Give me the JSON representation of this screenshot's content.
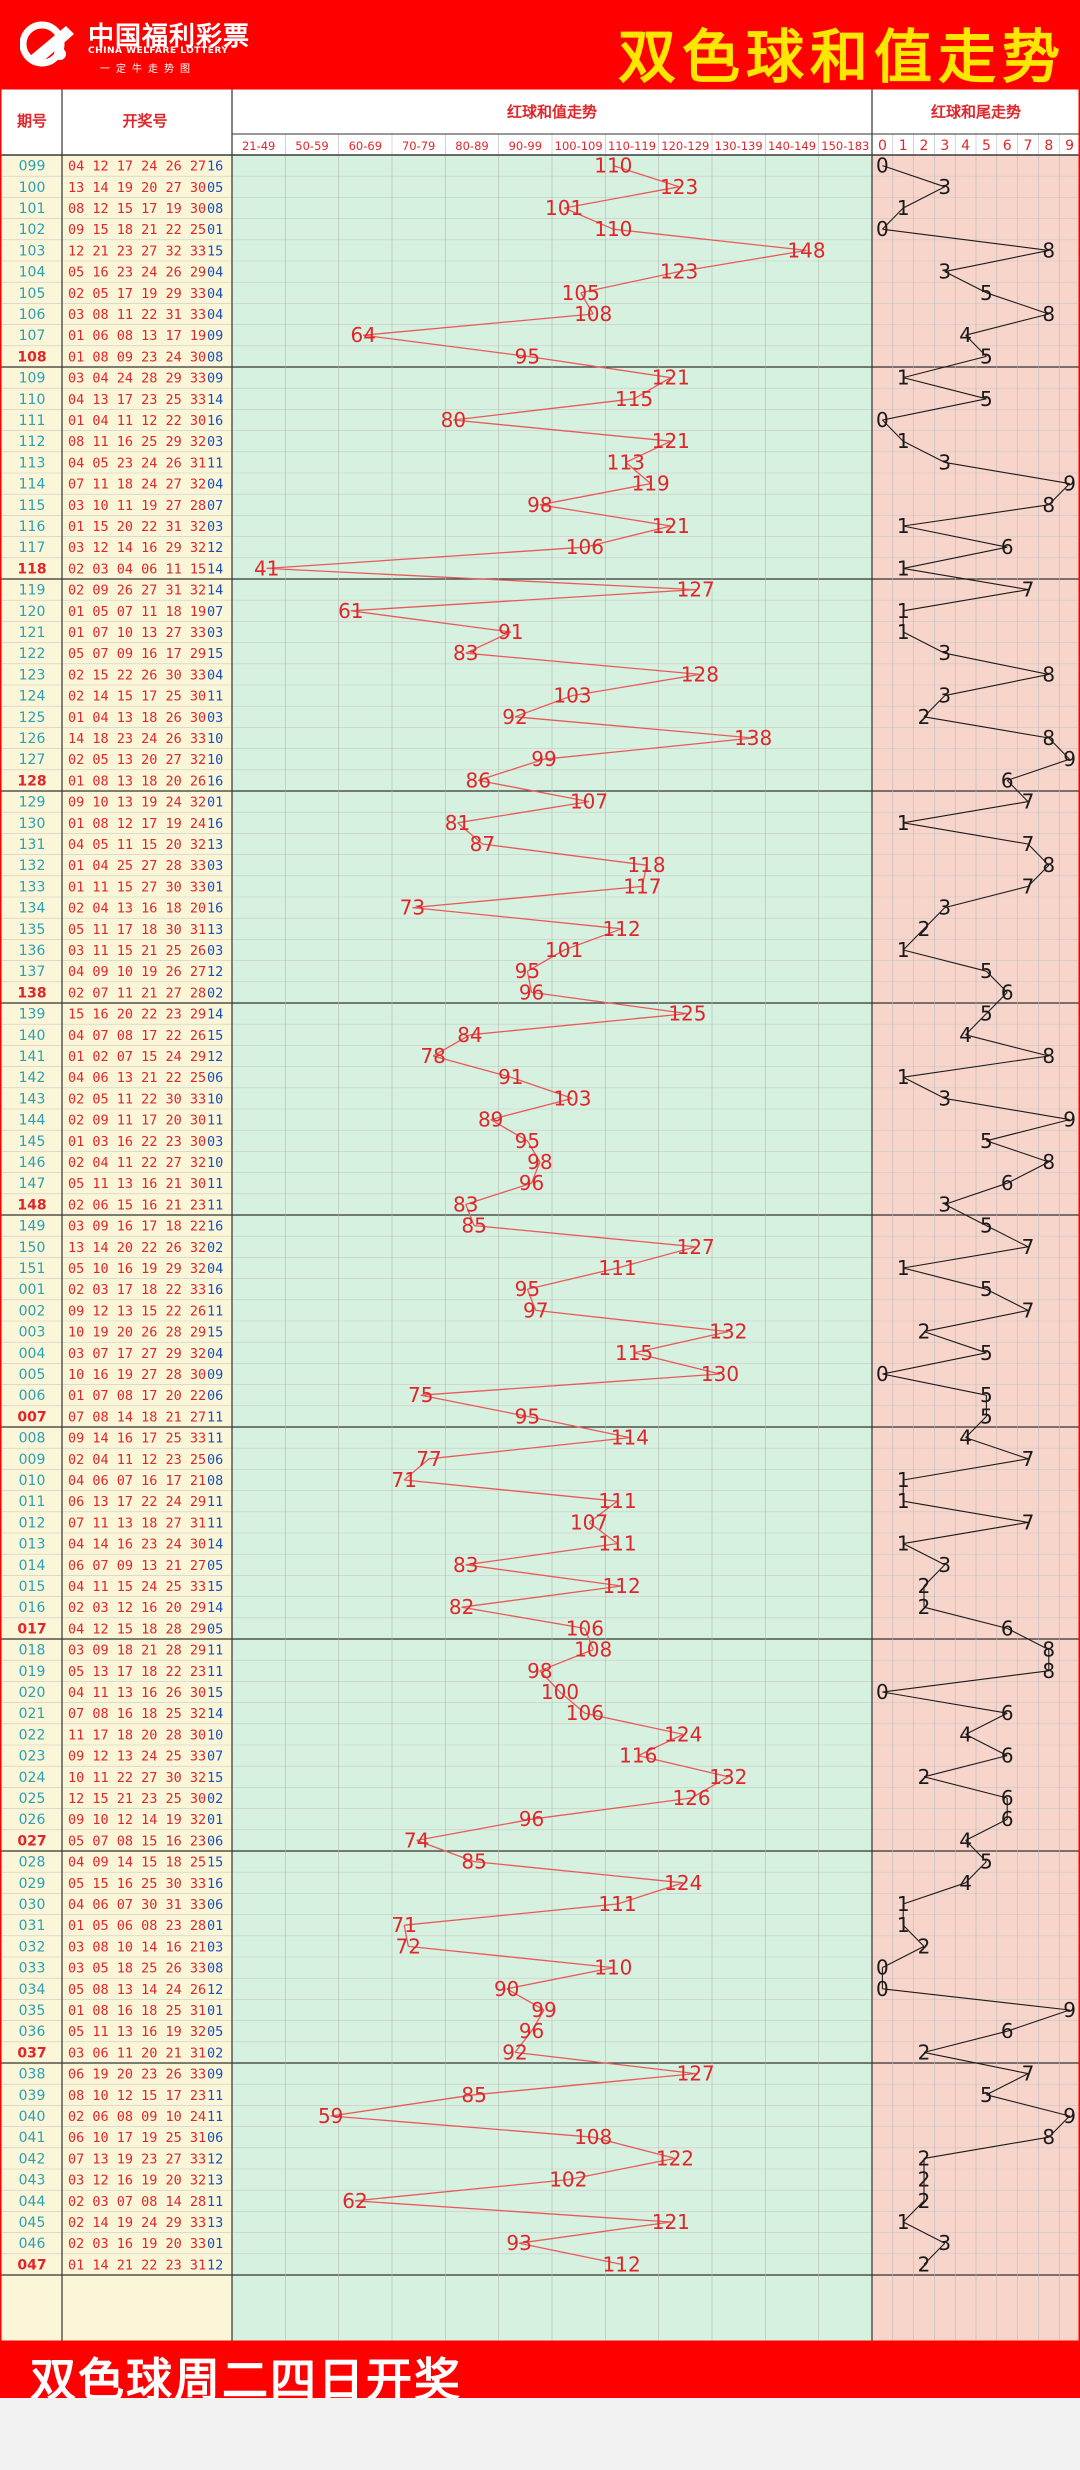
{
  "header": {
    "logo_cn": "中国福利彩票",
    "logo_en": "CHINA WELFARE LOTTERY",
    "logo_sub": "一定牛走势图",
    "title": "双色球和值走势"
  },
  "footer": {
    "text": "双色球周二四日开奖"
  },
  "columns": {
    "issue": "期号",
    "numbers": "开奖号",
    "sum_trend": "红球和值走势",
    "tail_trend": "红球和尾走势"
  },
  "colors": {
    "red": "#ff0000",
    "title_yellow": "#ffe600",
    "sum_bg": "#d6f1df",
    "tail_bg": "#f8d5cb",
    "left_bg": "#fbf6d8",
    "issue_blue": "#2a9fb5",
    "ball_red": "#e0262a",
    "ball_blue": "#1a4fb8",
    "line": "#e85a5a"
  },
  "chart_data": {
    "type": "line",
    "sum_ranges": [
      "21-49",
      "50-59",
      "60-69",
      "70-79",
      "80-89",
      "90-99",
      "100-109",
      "110-119",
      "120-129",
      "130-139",
      "140-149",
      "150-183"
    ],
    "tail_digits": [
      "0",
      "1",
      "2",
      "3",
      "4",
      "5",
      "6",
      "7",
      "8",
      "9"
    ],
    "draws": [
      {
        "issue": "099",
        "reds": "04 12 17 24 26 27",
        "blue": "16",
        "sum": 110,
        "tail": 0
      },
      {
        "issue": "100",
        "reds": "13 14 19 20 27 30",
        "blue": "05",
        "sum": 123,
        "tail": 3
      },
      {
        "issue": "101",
        "reds": "08 12 15 17 19 30",
        "blue": "08",
        "sum": 101,
        "tail": 1
      },
      {
        "issue": "102",
        "reds": "09 15 18 21 22 25",
        "blue": "01",
        "sum": 110,
        "tail": 0
      },
      {
        "issue": "103",
        "reds": "12 21 23 27 32 33",
        "blue": "15",
        "sum": 148,
        "tail": 8
      },
      {
        "issue": "104",
        "reds": "05 16 23 24 26 29",
        "blue": "04",
        "sum": 123,
        "tail": 3
      },
      {
        "issue": "105",
        "reds": "02 05 17 19 29 33",
        "blue": "04",
        "sum": 105,
        "tail": 5
      },
      {
        "issue": "106",
        "reds": "03 08 11 22 31 33",
        "blue": "04",
        "sum": 108,
        "tail": 8
      },
      {
        "issue": "107",
        "reds": "01 06 08 13 17 19",
        "blue": "09",
        "sum": 64,
        "tail": 4
      },
      {
        "issue": "108",
        "reds": "01 08 09 23 24 30",
        "blue": "08",
        "sum": 95,
        "tail": 5
      },
      {
        "issue": "109",
        "reds": "03 04 24 28 29 33",
        "blue": "09",
        "sum": 121,
        "tail": 1
      },
      {
        "issue": "110",
        "reds": "04 13 17 23 25 33",
        "blue": "14",
        "sum": 115,
        "tail": 5
      },
      {
        "issue": "111",
        "reds": "01 04 11 12 22 30",
        "blue": "16",
        "sum": 80,
        "tail": 0
      },
      {
        "issue": "112",
        "reds": "08 11 16 25 29 32",
        "blue": "03",
        "sum": 121,
        "tail": 1
      },
      {
        "issue": "113",
        "reds": "04 05 23 24 26 31",
        "blue": "11",
        "sum": 113,
        "tail": 3
      },
      {
        "issue": "114",
        "reds": "07 11 18 24 27 32",
        "blue": "04",
        "sum": 119,
        "tail": 9
      },
      {
        "issue": "115",
        "reds": "03 10 11 19 27 28",
        "blue": "07",
        "sum": 98,
        "tail": 8
      },
      {
        "issue": "116",
        "reds": "01 15 20 22 31 32",
        "blue": "03",
        "sum": 121,
        "tail": 1
      },
      {
        "issue": "117",
        "reds": "03 12 14 16 29 32",
        "blue": "12",
        "sum": 106,
        "tail": 6
      },
      {
        "issue": "118",
        "reds": "02 03 04 06 11 15",
        "blue": "14",
        "sum": 41,
        "tail": 1
      },
      {
        "issue": "119",
        "reds": "02 09 26 27 31 32",
        "blue": "14",
        "sum": 127,
        "tail": 7
      },
      {
        "issue": "120",
        "reds": "01 05 07 11 18 19",
        "blue": "07",
        "sum": 61,
        "tail": 1
      },
      {
        "issue": "121",
        "reds": "01 07 10 13 27 33",
        "blue": "03",
        "sum": 91,
        "tail": 1
      },
      {
        "issue": "122",
        "reds": "05 07 09 16 17 29",
        "blue": "15",
        "sum": 83,
        "tail": 3
      },
      {
        "issue": "123",
        "reds": "02 15 22 26 30 33",
        "blue": "04",
        "sum": 128,
        "tail": 8
      },
      {
        "issue": "124",
        "reds": "02 14 15 17 25 30",
        "blue": "11",
        "sum": 103,
        "tail": 3
      },
      {
        "issue": "125",
        "reds": "01 04 13 18 26 30",
        "blue": "03",
        "sum": 92,
        "tail": 2
      },
      {
        "issue": "126",
        "reds": "14 18 23 24 26 33",
        "blue": "10",
        "sum": 138,
        "tail": 8
      },
      {
        "issue": "127",
        "reds": "02 05 13 20 27 32",
        "blue": "10",
        "sum": 99,
        "tail": 9
      },
      {
        "issue": "128",
        "reds": "01 08 13 18 20 26",
        "blue": "16",
        "sum": 86,
        "tail": 6
      },
      {
        "issue": "129",
        "reds": "09 10 13 19 24 32",
        "blue": "01",
        "sum": 107,
        "tail": 7
      },
      {
        "issue": "130",
        "reds": "01 08 12 17 19 24",
        "blue": "16",
        "sum": 81,
        "tail": 1
      },
      {
        "issue": "131",
        "reds": "04 05 11 15 20 32",
        "blue": "13",
        "sum": 87,
        "tail": 7
      },
      {
        "issue": "132",
        "reds": "01 04 25 27 28 33",
        "blue": "03",
        "sum": 118,
        "tail": 8
      },
      {
        "issue": "133",
        "reds": "01 11 15 27 30 33",
        "blue": "01",
        "sum": 117,
        "tail": 7
      },
      {
        "issue": "134",
        "reds": "02 04 13 16 18 20",
        "blue": "16",
        "sum": 73,
        "tail": 3
      },
      {
        "issue": "135",
        "reds": "05 11 17 18 30 31",
        "blue": "13",
        "sum": 112,
        "tail": 2
      },
      {
        "issue": "136",
        "reds": "03 11 15 21 25 26",
        "blue": "03",
        "sum": 101,
        "tail": 1
      },
      {
        "issue": "137",
        "reds": "04 09 10 19 26 27",
        "blue": "12",
        "sum": 95,
        "tail": 5
      },
      {
        "issue": "138",
        "reds": "02 07 11 21 27 28",
        "blue": "02",
        "sum": 96,
        "tail": 6
      },
      {
        "issue": "139",
        "reds": "15 16 20 22 23 29",
        "blue": "14",
        "sum": 125,
        "tail": 5
      },
      {
        "issue": "140",
        "reds": "04 07 08 17 22 26",
        "blue": "15",
        "sum": 84,
        "tail": 4
      },
      {
        "issue": "141",
        "reds": "01 02 07 15 24 29",
        "blue": "12",
        "sum": 78,
        "tail": 8
      },
      {
        "issue": "142",
        "reds": "04 06 13 21 22 25",
        "blue": "06",
        "sum": 91,
        "tail": 1
      },
      {
        "issue": "143",
        "reds": "02 05 11 22 30 33",
        "blue": "10",
        "sum": 103,
        "tail": 3
      },
      {
        "issue": "144",
        "reds": "02 09 11 17 20 30",
        "blue": "11",
        "sum": 89,
        "tail": 9
      },
      {
        "issue": "145",
        "reds": "01 03 16 22 23 30",
        "blue": "03",
        "sum": 95,
        "tail": 5
      },
      {
        "issue": "146",
        "reds": "02 04 11 22 27 32",
        "blue": "10",
        "sum": 98,
        "tail": 8
      },
      {
        "issue": "147",
        "reds": "05 11 13 16 21 30",
        "blue": "11",
        "sum": 96,
        "tail": 6
      },
      {
        "issue": "148",
        "reds": "02 06 15 16 21 23",
        "blue": "11",
        "sum": 83,
        "tail": 3
      },
      {
        "issue": "149",
        "reds": "03 09 16 17 18 22",
        "blue": "16",
        "sum": 85,
        "tail": 5
      },
      {
        "issue": "150",
        "reds": "13 14 20 22 26 32",
        "blue": "02",
        "sum": 127,
        "tail": 7
      },
      {
        "issue": "151",
        "reds": "05 10 16 19 29 32",
        "blue": "04",
        "sum": 111,
        "tail": 1
      },
      {
        "issue": "001",
        "reds": "02 03 17 18 22 33",
        "blue": "16",
        "sum": 95,
        "tail": 5
      },
      {
        "issue": "002",
        "reds": "09 12 13 15 22 26",
        "blue": "11",
        "sum": 97,
        "tail": 7
      },
      {
        "issue": "003",
        "reds": "10 19 20 26 28 29",
        "blue": "15",
        "sum": 132,
        "tail": 2
      },
      {
        "issue": "004",
        "reds": "03 07 17 27 29 32",
        "blue": "04",
        "sum": 115,
        "tail": 5
      },
      {
        "issue": "005",
        "reds": "10 16 19 27 28 30",
        "blue": "09",
        "sum": 130,
        "tail": 0
      },
      {
        "issue": "006",
        "reds": "01 07 08 17 20 22",
        "blue": "06",
        "sum": 75,
        "tail": 5
      },
      {
        "issue": "007",
        "reds": "07 08 14 18 21 27",
        "blue": "11",
        "sum": 95,
        "tail": 5
      },
      {
        "issue": "008",
        "reds": "09 14 16 17 25 33",
        "blue": "11",
        "sum": 114,
        "tail": 4
      },
      {
        "issue": "009",
        "reds": "02 04 11 12 23 25",
        "blue": "06",
        "sum": 77,
        "tail": 7
      },
      {
        "issue": "010",
        "reds": "04 06 07 16 17 21",
        "blue": "08",
        "sum": 71,
        "tail": 1
      },
      {
        "issue": "011",
        "reds": "06 13 17 22 24 29",
        "blue": "11",
        "sum": 111,
        "tail": 1
      },
      {
        "issue": "012",
        "reds": "07 11 13 18 27 31",
        "blue": "11",
        "sum": 107,
        "tail": 7
      },
      {
        "issue": "013",
        "reds": "04 14 16 23 24 30",
        "blue": "14",
        "sum": 111,
        "tail": 1
      },
      {
        "issue": "014",
        "reds": "06 07 09 13 21 27",
        "blue": "05",
        "sum": 83,
        "tail": 3
      },
      {
        "issue": "015",
        "reds": "04 11 15 24 25 33",
        "blue": "15",
        "sum": 112,
        "tail": 2
      },
      {
        "issue": "016",
        "reds": "02 03 12 16 20 29",
        "blue": "14",
        "sum": 82,
        "tail": 2
      },
      {
        "issue": "017",
        "reds": "04 12 15 18 28 29",
        "blue": "05",
        "sum": 106,
        "tail": 6
      },
      {
        "issue": "018",
        "reds": "03 09 18 21 28 29",
        "blue": "11",
        "sum": 108,
        "tail": 8
      },
      {
        "issue": "019",
        "reds": "05 13 17 18 22 23",
        "blue": "11",
        "sum": 98,
        "tail": 8
      },
      {
        "issue": "020",
        "reds": "04 11 13 16 26 30",
        "blue": "15",
        "sum": 100,
        "tail": 0
      },
      {
        "issue": "021",
        "reds": "07 08 16 18 25 32",
        "blue": "14",
        "sum": 106,
        "tail": 6
      },
      {
        "issue": "022",
        "reds": "11 17 18 20 28 30",
        "blue": "10",
        "sum": 124,
        "tail": 4
      },
      {
        "issue": "023",
        "reds": "09 12 13 24 25 33",
        "blue": "07",
        "sum": 116,
        "tail": 6
      },
      {
        "issue": "024",
        "reds": "10 11 22 27 30 32",
        "blue": "15",
        "sum": 132,
        "tail": 2
      },
      {
        "issue": "025",
        "reds": "12 15 21 23 25 30",
        "blue": "02",
        "sum": 126,
        "tail": 6
      },
      {
        "issue": "026",
        "reds": "09 10 12 14 19 32",
        "blue": "01",
        "sum": 96,
        "tail": 6
      },
      {
        "issue": "027",
        "reds": "05 07 08 15 16 23",
        "blue": "06",
        "sum": 74,
        "tail": 4
      },
      {
        "issue": "028",
        "reds": "04 09 14 15 18 25",
        "blue": "15",
        "sum": 85,
        "tail": 5
      },
      {
        "issue": "029",
        "reds": "05 15 16 25 30 33",
        "blue": "16",
        "sum": 124,
        "tail": 4
      },
      {
        "issue": "030",
        "reds": "04 06 07 30 31 33",
        "blue": "06",
        "sum": 111,
        "tail": 1
      },
      {
        "issue": "031",
        "reds": "01 05 06 08 23 28",
        "blue": "01",
        "sum": 71,
        "tail": 1
      },
      {
        "issue": "032",
        "reds": "03 08 10 14 16 21",
        "blue": "03",
        "sum": 72,
        "tail": 2
      },
      {
        "issue": "033",
        "reds": "03 05 18 25 26 33",
        "blue": "08",
        "sum": 110,
        "tail": 0
      },
      {
        "issue": "034",
        "reds": "05 08 13 14 24 26",
        "blue": "12",
        "sum": 90,
        "tail": 0
      },
      {
        "issue": "035",
        "reds": "01 08 16 18 25 31",
        "blue": "01",
        "sum": 99,
        "tail": 9
      },
      {
        "issue": "036",
        "reds": "05 11 13 16 19 32",
        "blue": "05",
        "sum": 96,
        "tail": 6
      },
      {
        "issue": "037",
        "reds": "03 06 11 20 21 31",
        "blue": "02",
        "sum": 92,
        "tail": 2
      },
      {
        "issue": "038",
        "reds": "06 19 20 23 26 33",
        "blue": "09",
        "sum": 127,
        "tail": 7
      },
      {
        "issue": "039",
        "reds": "08 10 12 15 17 23",
        "blue": "11",
        "sum": 85,
        "tail": 5
      },
      {
        "issue": "040",
        "reds": "02 06 08 09 10 24",
        "blue": "11",
        "sum": 59,
        "tail": 9
      },
      {
        "issue": "041",
        "reds": "06 10 17 19 25 31",
        "blue": "06",
        "sum": 108,
        "tail": 8
      },
      {
        "issue": "042",
        "reds": "07 13 19 23 27 33",
        "blue": "12",
        "sum": 122,
        "tail": 2
      },
      {
        "issue": "043",
        "reds": "03 12 16 19 20 32",
        "blue": "13",
        "sum": 102,
        "tail": 2
      },
      {
        "issue": "044",
        "reds": "02 03 07 08 14 28",
        "blue": "11",
        "sum": 62,
        "tail": 2
      },
      {
        "issue": "045",
        "reds": "02 14 19 24 29 33",
        "blue": "13",
        "sum": 121,
        "tail": 1
      },
      {
        "issue": "046",
        "reds": "02 03 16 19 20 33",
        "blue": "01",
        "sum": 93,
        "tail": 3
      },
      {
        "issue": "047",
        "reds": "01 14 21 22 23 31",
        "blue": "12",
        "sum": 112,
        "tail": 2
      }
    ]
  }
}
